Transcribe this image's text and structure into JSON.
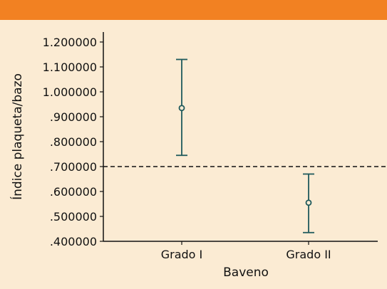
{
  "chart_data": {
    "type": "errorbar",
    "title": "",
    "xlabel": "Baveno",
    "ylabel": "Índice plaqueta/bazo",
    "categories": [
      "Grado I",
      "Grado II"
    ],
    "series": [
      {
        "points": [
          {
            "category": "Grado I",
            "mean": 0.935,
            "lower": 0.745,
            "upper": 1.13
          },
          {
            "category": "Grado II",
            "mean": 0.555,
            "lower": 0.435,
            "upper": 0.67
          }
        ]
      }
    ],
    "yticks": [
      ".400000",
      ".500000",
      ".600000",
      ".700000",
      ".800000",
      ".900000",
      "1.000000",
      "1.100000",
      "1.200000"
    ],
    "ylim": [
      0.4,
      1.2
    ],
    "reference_line": {
      "y": 0.7,
      "style": "dashed"
    },
    "colors": {
      "header_bar": "#f28122",
      "background": "#fbebd3",
      "marks": "#1f5a5c",
      "axis": "#111111"
    }
  }
}
